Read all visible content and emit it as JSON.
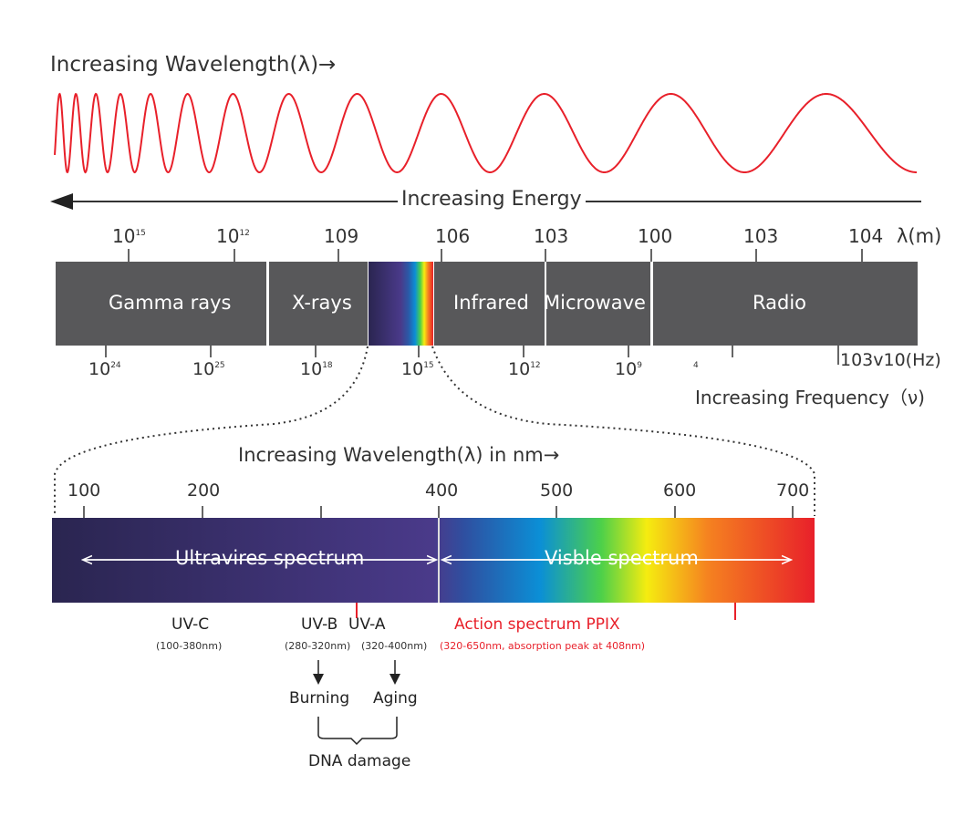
{
  "top_title": "Increasing Wavelength(λ)→",
  "energy_label": "Increasing Energy",
  "wavelength_unit": "λ(m)",
  "wavelength_ticks": [
    {
      "base": "10",
      "exp": "15"
    },
    {
      "base": "10",
      "exp": "12"
    },
    {
      "base": "109",
      "exp": ""
    },
    {
      "base": "106",
      "exp": ""
    },
    {
      "base": "103",
      "exp": ""
    },
    {
      "base": "100",
      "exp": ""
    },
    {
      "base": "103",
      "exp": ""
    },
    {
      "base": "104",
      "exp": ""
    }
  ],
  "bands": [
    "Gamma rays",
    "X-rays",
    "Infrared",
    "Microwave",
    "Radio"
  ],
  "frequency_ticks": [
    {
      "base": "10",
      "exp": "24"
    },
    {
      "base": "10",
      "exp": "25"
    },
    {
      "base": "10",
      "exp": "18"
    },
    {
      "base": "10",
      "exp": "15"
    },
    {
      "base": "10",
      "exp": "12"
    },
    {
      "base": "10",
      "exp": "9"
    },
    {
      "base": "",
      "exp": "4"
    }
  ],
  "frequency_unit": "103v10(Hz)",
  "frequency_label": "Increasing Frequency（ν)",
  "nm_title": "Increasing Wavelength(λ) in nm→",
  "nm_ticks": [
    "100",
    "200",
    "400",
    "500",
    "600",
    "700"
  ],
  "uv_label": "Ultravires spectrum",
  "visible_label": "Visble spectrum",
  "uvc": {
    "name": "UV-C",
    "range": "(100-380nm)"
  },
  "uvb": {
    "name": "UV-B",
    "range": "(280-320nm)",
    "effect": "Burning"
  },
  "uva": {
    "name": "UV-A",
    "range": "(320-400nm)",
    "effect": "Aging"
  },
  "combined_effect": "DNA damage",
  "action": {
    "name": "Action spectrum PPIX",
    "range": "(320-650nm, absorption peak at 408nm)",
    "color": "#e8202a"
  },
  "wave_color": "#e8202a"
}
